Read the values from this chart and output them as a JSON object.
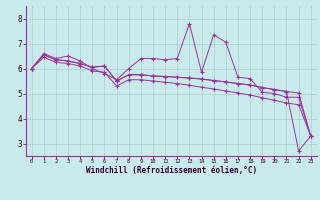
{
  "xlabel": "Windchill (Refroidissement éolien,°C)",
  "bg_color": "#c8eaea",
  "grid_color": "#aacccc",
  "line_color": "#993399",
  "x_ticks": [
    0,
    1,
    2,
    3,
    4,
    5,
    6,
    7,
    8,
    9,
    10,
    11,
    12,
    13,
    14,
    15,
    16,
    17,
    18,
    19,
    20,
    21,
    22,
    23
  ],
  "y_ticks": [
    3,
    4,
    5,
    6,
    7,
    8
  ],
  "ylim": [
    2.5,
    8.5
  ],
  "xlim": [
    -0.5,
    23.5
  ],
  "series1": [
    6.0,
    6.6,
    6.4,
    6.5,
    6.3,
    6.0,
    5.8,
    5.55,
    6.0,
    6.4,
    6.4,
    6.35,
    6.4,
    7.8,
    5.85,
    7.35,
    7.05,
    5.65,
    5.6,
    5.05,
    5.0,
    4.85,
    4.85,
    3.3
  ],
  "series2": [
    6.0,
    6.55,
    6.35,
    6.3,
    6.2,
    6.05,
    6.1,
    5.5,
    5.75,
    5.75,
    5.7,
    5.68,
    5.65,
    5.62,
    5.58,
    5.52,
    5.46,
    5.4,
    5.34,
    5.24,
    5.16,
    5.08,
    5.02,
    3.3
  ],
  "series3": [
    6.0,
    6.55,
    6.35,
    6.3,
    6.2,
    6.05,
    6.1,
    5.5,
    5.75,
    5.75,
    5.7,
    5.68,
    5.65,
    5.62,
    5.58,
    5.52,
    5.46,
    5.4,
    5.34,
    5.24,
    5.16,
    5.08,
    2.7,
    3.3
  ],
  "series4": [
    6.0,
    6.45,
    6.25,
    6.2,
    6.1,
    5.9,
    5.85,
    5.3,
    5.55,
    5.55,
    5.5,
    5.45,
    5.4,
    5.33,
    5.25,
    5.18,
    5.1,
    5.02,
    4.94,
    4.83,
    4.73,
    4.62,
    4.55,
    3.3
  ]
}
